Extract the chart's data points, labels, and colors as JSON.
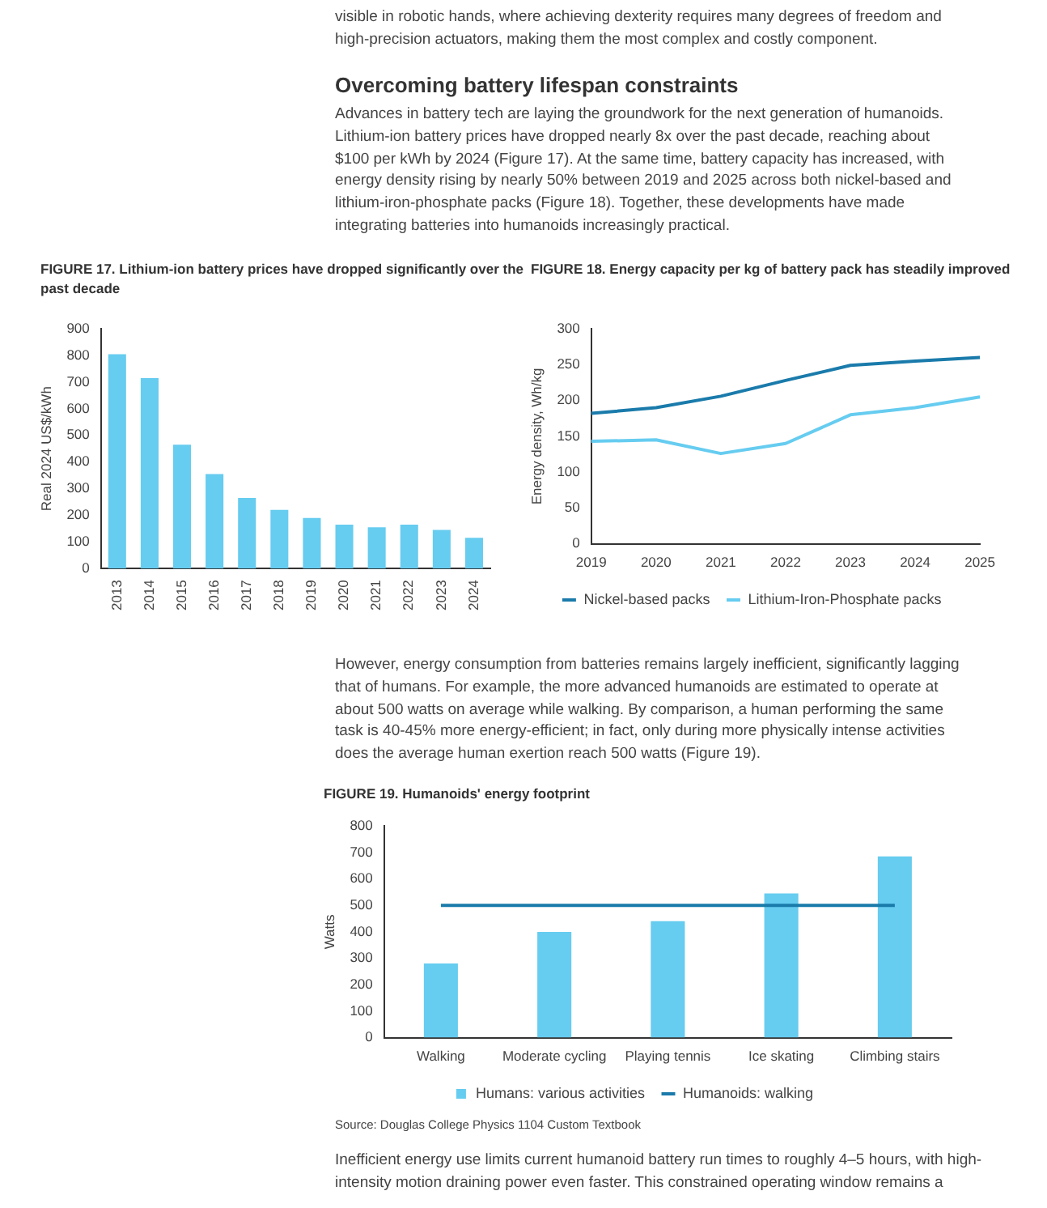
{
  "chart_data": [
    {
      "type": "bar",
      "title": "FIGURE 17. Lithium-ion battery prices have dropped significantly over the past decade",
      "ylabel": "Real 2024 US$/kWh",
      "categories": [
        "2013",
        "2014",
        "2015",
        "2016",
        "2017",
        "2018",
        "2019",
        "2020",
        "2021",
        "2022",
        "2023",
        "2024"
      ],
      "values": [
        805,
        715,
        465,
        355,
        265,
        220,
        190,
        165,
        155,
        165,
        145,
        115
      ],
      "color": "#66ccf0",
      "ylim": [
        0,
        900
      ],
      "yticks": [
        0,
        100,
        200,
        300,
        400,
        500,
        600,
        700,
        800,
        900
      ],
      "grid": false,
      "legend": false,
      "annotations": [
        "visible in robotic hands, where achieving dexterity requires many degrees of freedom and high-precision actuators, making them the most complex and costly component.",
        "Overcoming battery lifespan constraints",
        "Advances in battery tech are laying the groundwork for the next generation of humanoids. Lithium-ion battery prices have dropped nearly 8x over the past decade, reaching about $100 per kWh by 2024 (Figure 17). At the same time, battery capacity has increased, with energy density rising by nearly 50% between 2019 and 2025 across both nickel-based and lithium-iron-phosphate packs (Figure 18). Together, these developments have made integrating batteries into humanoids increasingly practical."
      ]
    },
    {
      "type": "line",
      "title": "FIGURE 18. Energy capacity per kg of battery pack has steadily improved",
      "ylabel": "Energy density, Wh/kg",
      "categories": [
        "2019",
        "2020",
        "2021",
        "2022",
        "2023",
        "2024",
        "2025"
      ],
      "series": [
        {
          "name": "Nickel-based packs",
          "color": "#1a7bab",
          "values": [
            182,
            190,
            206,
            228,
            249,
            255,
            260
          ]
        },
        {
          "name": "Lithium-Iron-Phosphate packs",
          "color": "#66ccf0",
          "values": [
            143,
            145,
            126,
            140,
            180,
            190,
            205
          ]
        }
      ],
      "ylim": [
        0,
        300
      ],
      "yticks": [
        0,
        50,
        100,
        150,
        200,
        250,
        300
      ],
      "grid": false,
      "legend": "bottom",
      "marker": "none"
    },
    {
      "type": "bar",
      "title": "FIGURE 19. Humanoids' energy footprint",
      "ylabel": "Watts",
      "categories": [
        "Walking",
        "Moderate cycling",
        "Playing tennis",
        "Ice skating",
        "Climbing stairs"
      ],
      "series": [
        {
          "name": "Humans: various activities",
          "color": "#66ccf0",
          "values": [
            280,
            400,
            440,
            545,
            685
          ]
        },
        {
          "name": "Humanoids: walking",
          "type": "line",
          "color": "#1a7bab",
          "values": [
            500,
            500,
            500,
            500,
            500
          ]
        }
      ],
      "ylim": [
        0,
        800
      ],
      "yticks": [
        0,
        100,
        200,
        300,
        400,
        500,
        600,
        700,
        800
      ],
      "grid": false,
      "legend": "bottom",
      "marker": "none",
      "annotations": [
        "However, energy consumption from batteries remains largely inefficient, significantly lagging that of humans. For example, the more advanced humanoids are estimated to operate at about 500 watts on average while walking. By comparison, a human performing the same task is 40-45% more energy-efficient; in fact, only during more physically intense activities does the average human exertion reach 500 watts (Figure 19).",
        "Source: Douglas College Physics 1104 Custom Textbook",
        "Inefficient energy use limits current humanoid battery run times to roughly 4–5 hours, with high-intensity motion draining power even faster. This constrained operating window remains a"
      ]
    }
  ]
}
